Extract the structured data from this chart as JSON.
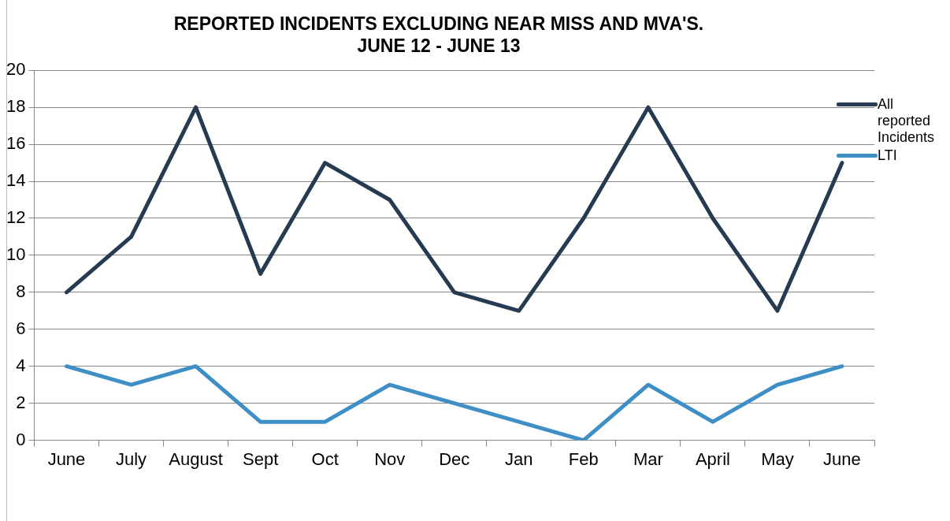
{
  "chart_data": {
    "type": "line",
    "title": "REPORTED INCIDENTS EXCLUDING NEAR MISS AND MVA'S.",
    "subtitle": "JUNE 12 - JUNE 13",
    "categories": [
      "June",
      "July",
      "August",
      "Sept",
      "Oct",
      "Nov",
      "Dec",
      "Jan",
      "Feb",
      "Mar",
      "April",
      "May",
      "June"
    ],
    "series": [
      {
        "name": "All reported Incidents",
        "color": "#263a52",
        "values": [
          8,
          11,
          18,
          9,
          15,
          13,
          8,
          7,
          12,
          18,
          12,
          7,
          15
        ]
      },
      {
        "name": "LTI",
        "color": "#3f8fc6",
        "values": [
          4,
          3,
          4,
          1,
          1,
          3,
          2,
          1,
          0,
          3,
          1,
          3,
          4
        ]
      }
    ],
    "ylim": [
      0,
      20
    ],
    "yticks": [
      0,
      2,
      4,
      6,
      8,
      10,
      12,
      14,
      16,
      18,
      20
    ],
    "grid": "y",
    "legend": "right",
    "marker": "none",
    "line_style": "solid"
  }
}
